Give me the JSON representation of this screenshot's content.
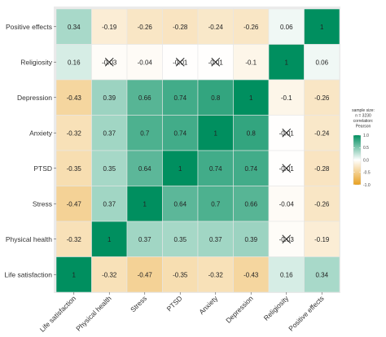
{
  "chart_data": {
    "type": "heatmap",
    "variables_x": [
      "Life satisfaction",
      "Physical health",
      "Stress",
      "PTSD",
      "Anxiety",
      "Depression",
      "Religiosity",
      "Positive effects"
    ],
    "variables_y_top_to_bottom": [
      "Positive effects",
      "Religiosity",
      "Depression",
      "Anxiety",
      "PTSD",
      "Stress",
      "Physical health",
      "Life satisfaction"
    ],
    "matrix_top_to_bottom": [
      [
        0.34,
        -0.19,
        -0.26,
        -0.28,
        -0.24,
        -0.26,
        0.06,
        1
      ],
      [
        0.16,
        -0.03,
        -0.04,
        -0.01,
        -0.01,
        -0.1,
        1,
        0.06
      ],
      [
        -0.43,
        0.39,
        0.66,
        0.74,
        0.8,
        1,
        -0.1,
        -0.26
      ],
      [
        -0.32,
        0.37,
        0.7,
        0.74,
        1,
        0.8,
        -0.01,
        -0.24
      ],
      [
        -0.35,
        0.35,
        0.64,
        1,
        0.74,
        0.74,
        -0.01,
        -0.28
      ],
      [
        -0.47,
        0.37,
        1,
        0.64,
        0.7,
        0.66,
        -0.04,
        -0.26
      ],
      [
        -0.32,
        1,
        0.37,
        0.35,
        0.37,
        0.39,
        -0.03,
        -0.19
      ],
      [
        1,
        -0.32,
        -0.47,
        -0.35,
        -0.32,
        -0.43,
        0.16,
        0.34
      ]
    ],
    "labels_top_to_bottom": [
      [
        "0.34",
        "-0.19",
        "-0.26",
        "-0.28",
        "-0.24",
        "-0.26",
        "0.06",
        "1"
      ],
      [
        "0.16",
        "-0.03",
        "-0.04",
        "-0.01",
        "-0.01",
        "-0.1",
        "1",
        "0.06"
      ],
      [
        "-0.43",
        "0.39",
        "0.66",
        "0.74",
        "0.8",
        "1",
        "-0.1",
        "-0.26"
      ],
      [
        "-0.32",
        "0.37",
        "0.7",
        "0.74",
        "1",
        "0.8",
        "-0.01",
        "-0.24"
      ],
      [
        "-0.35",
        "0.35",
        "0.64",
        "1",
        "0.74",
        "0.74",
        "-0.01",
        "-0.28"
      ],
      [
        "-0.47",
        "0.37",
        "1",
        "0.64",
        "0.7",
        "0.66",
        "-0.04",
        "-0.26"
      ],
      [
        "-0.32",
        "1",
        "0.37",
        "0.35",
        "0.37",
        "0.39",
        "-0.03",
        "-0.19"
      ],
      [
        "1",
        "-0.32",
        "-0.47",
        "-0.35",
        "-0.32",
        "-0.43",
        "0.16",
        "0.34"
      ]
    ],
    "crossed_out_top_to_bottom": [
      [
        false,
        false,
        false,
        false,
        false,
        false,
        false,
        false
      ],
      [
        false,
        true,
        false,
        true,
        true,
        false,
        false,
        false
      ],
      [
        false,
        false,
        false,
        false,
        false,
        false,
        false,
        false
      ],
      [
        false,
        false,
        false,
        false,
        false,
        false,
        true,
        false
      ],
      [
        false,
        false,
        false,
        false,
        false,
        false,
        true,
        false
      ],
      [
        false,
        false,
        false,
        false,
        false,
        false,
        false,
        false
      ],
      [
        false,
        false,
        false,
        false,
        false,
        false,
        true,
        false
      ],
      [
        false,
        false,
        false,
        false,
        false,
        false,
        false,
        false
      ]
    ],
    "color_scale": {
      "min": -1,
      "max": 1,
      "low_color": "#e8a020",
      "mid_color": "#ffffff",
      "high_color": "#008f5f"
    },
    "legend": {
      "title_lines": [
        "sample size:",
        "n = 3230",
        "correlation:",
        "Pearson"
      ],
      "ticks": [
        "1.0",
        "0.5",
        "0.0",
        "-0.5",
        "-1.0"
      ],
      "tick_values": [
        1,
        0.5,
        0,
        -0.5,
        -1
      ],
      "position": "right"
    },
    "xlim": [
      -1,
      1
    ],
    "grid": false
  }
}
